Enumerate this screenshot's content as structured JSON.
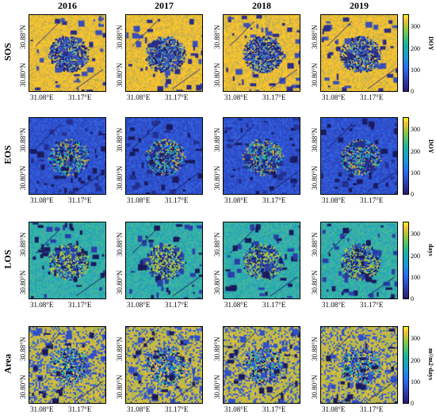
{
  "columns": [
    "2016",
    "2017",
    "2018",
    "2019"
  ],
  "rows": [
    {
      "label": "SOS",
      "unit": "DOY",
      "style": "sos"
    },
    {
      "label": "EOS",
      "unit": "DOY",
      "style": "eos"
    },
    {
      "label": "LOS",
      "unit": "days",
      "style": "los"
    },
    {
      "label": "Area",
      "unit": "m²/m2·days",
      "style": "area"
    }
  ],
  "axes": {
    "y_ticks": [
      "30.80°N",
      "30.88°N"
    ],
    "x_ticks": [
      "31.08°E",
      "31.17°E"
    ]
  },
  "colorbar": {
    "ticks": [
      "0",
      "100",
      "200",
      "300"
    ],
    "min": 0,
    "max": 360,
    "colors": [
      "#2b1a6e",
      "#2f3fb8",
      "#2c6cf0",
      "#1d9ad6",
      "#17b3a5",
      "#4ec46a",
      "#a6c738",
      "#f3c43a",
      "#f9fb0e"
    ]
  }
}
